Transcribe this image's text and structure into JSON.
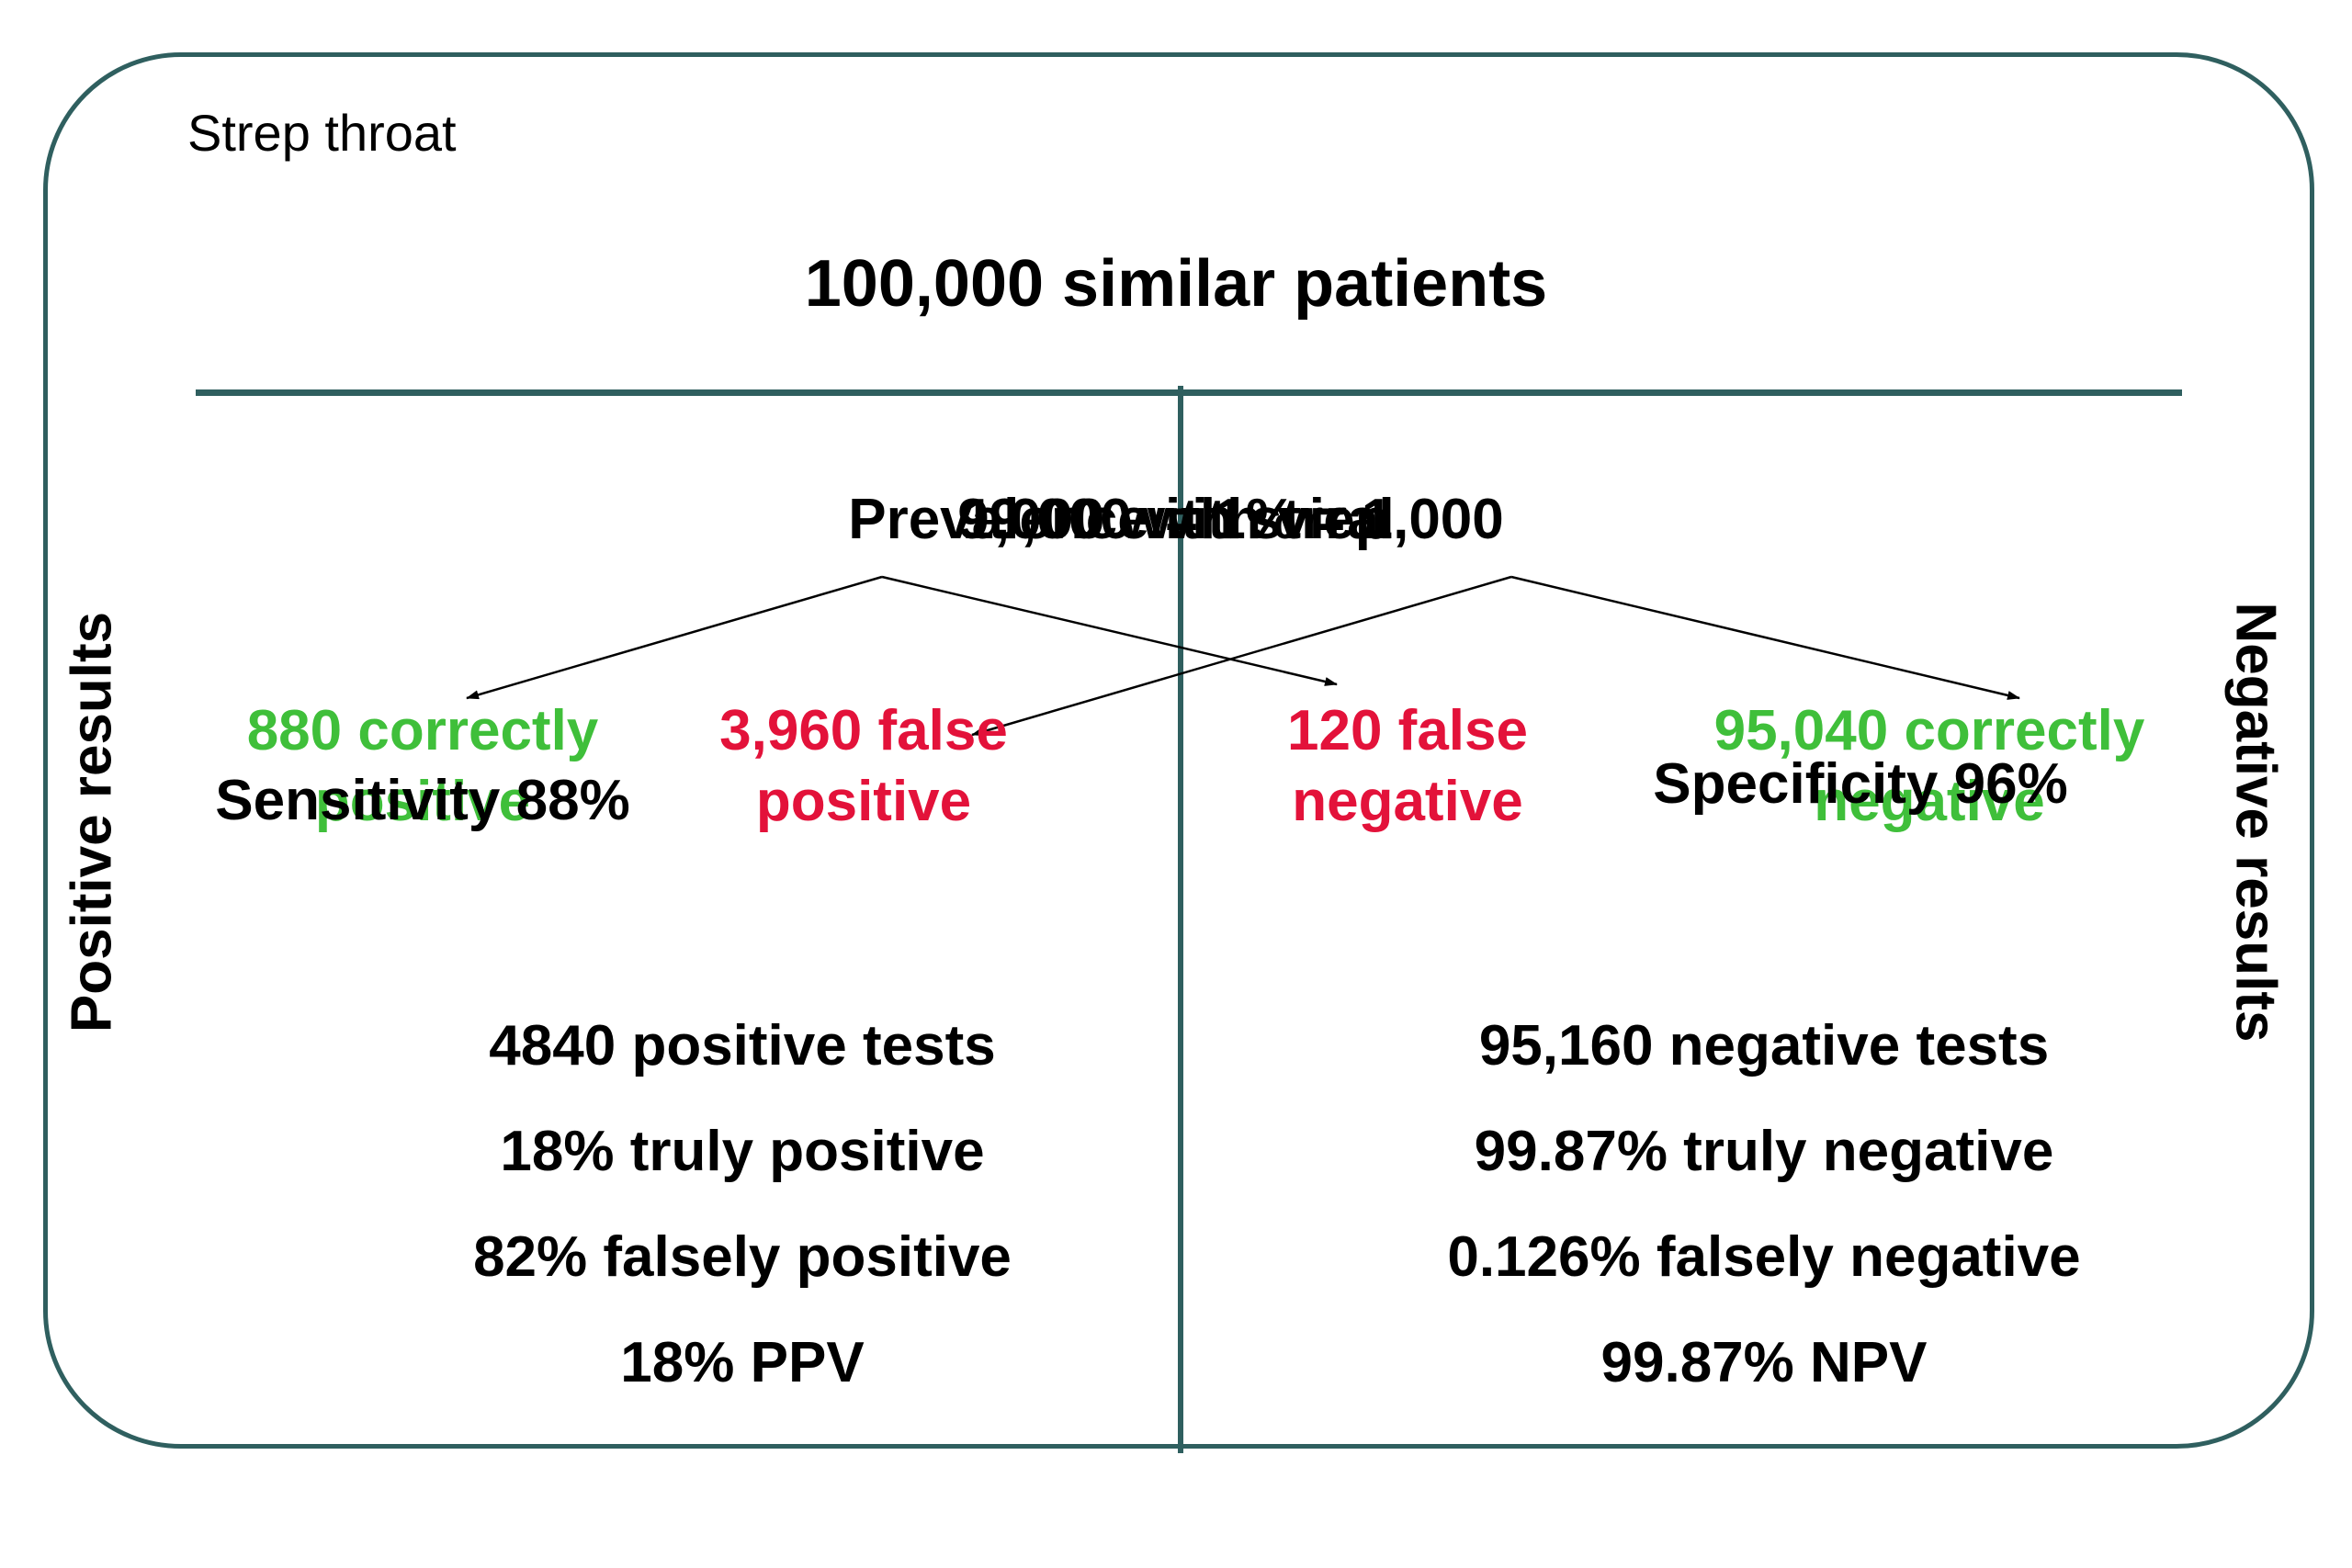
{
  "corner_label": "Strep throat",
  "title": "100,000 similar patients",
  "prevalence_line": {
    "strep": "1,000 with strep",
    "prevalence": "Prevalence = 1% = 1,000",
    "viral": "99,000 with viral"
  },
  "outcomes": {
    "true_positive": {
      "line1": "880 correctly",
      "line2": "positive"
    },
    "false_positive": {
      "line1": "3,960 false",
      "line2": "positive"
    },
    "false_negative": {
      "line1": "120 false",
      "line2": "negative"
    },
    "true_negative": {
      "line1": "95,040 correctly",
      "line2": "negative"
    }
  },
  "sensitivity": "Sensitivity 88%",
  "specificity": "Specificity 96%",
  "positive_stats": [
    "4840 positive tests",
    "18% truly positive",
    "82% falsely positive",
    "18% PPV"
  ],
  "negative_stats": [
    "95,160 negative tests",
    "99.87% truly negative",
    "0.126% falsely negative",
    "99.87% NPV"
  ],
  "side_labels": {
    "left": "Positive results",
    "right": "Negative results"
  },
  "colors": {
    "frame": "#2f5f5f",
    "correct": "#3fbf3a",
    "false": "#e3123a"
  }
}
